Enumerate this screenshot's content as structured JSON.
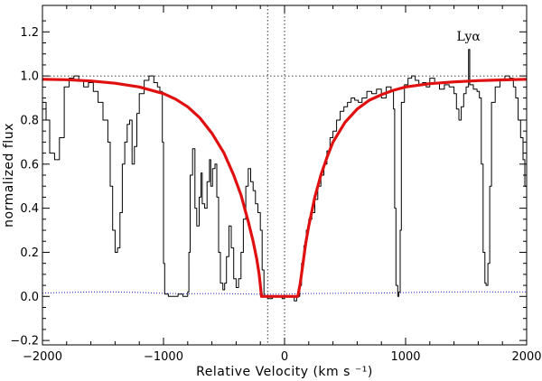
{
  "chart_data": {
    "type": "line",
    "title": "",
    "xlabel": "Relative Velocity (km s ⁻¹)",
    "ylabel": "normalized flux",
    "xlim": [
      -2000,
      2000
    ],
    "ylim": [
      -0.22,
      1.32
    ],
    "grid": false,
    "xticks": [
      -2000,
      -1000,
      0,
      1000,
      2000
    ],
    "xtick_labels": [
      "−2000",
      "−1000",
      "0",
      "1000",
      "2000"
    ],
    "yticks": [
      -0.2,
      0.0,
      0.2,
      0.4,
      0.6,
      0.8,
      1.0,
      1.2
    ],
    "ytick_labels": [
      "−0.2",
      "0.0",
      "0.2",
      "0.4",
      "0.6",
      "0.8",
      "1.0",
      "1.2"
    ],
    "annotations": [
      {
        "text": "Lyα",
        "x": 1520,
        "y": 1.16
      }
    ],
    "reference_lines": {
      "horizontal": [
        1.0
      ],
      "vertical": [
        -140,
        0
      ]
    },
    "series": [
      {
        "color": "#000000",
        "style": "histogram",
        "points": [
          [
            -2000,
            0.88
          ],
          [
            -1970,
            0.8
          ],
          [
            -1940,
            0.65
          ],
          [
            -1900,
            0.62
          ],
          [
            -1860,
            0.72
          ],
          [
            -1820,
            0.95
          ],
          [
            -1780,
            0.99
          ],
          [
            -1740,
            1.0
          ],
          [
            -1700,
            0.98
          ],
          [
            -1660,
            0.95
          ],
          [
            -1620,
            0.97
          ],
          [
            -1580,
            0.93
          ],
          [
            -1540,
            0.88
          ],
          [
            -1500,
            0.8
          ],
          [
            -1460,
            0.7
          ],
          [
            -1440,
            0.5
          ],
          [
            -1420,
            0.3
          ],
          [
            -1400,
            0.2
          ],
          [
            -1380,
            0.22
          ],
          [
            -1360,
            0.38
          ],
          [
            -1340,
            0.6
          ],
          [
            -1320,
            0.7
          ],
          [
            -1300,
            0.78
          ],
          [
            -1280,
            0.8
          ],
          [
            -1260,
            0.6
          ],
          [
            -1240,
            0.68
          ],
          [
            -1220,
            0.83
          ],
          [
            -1200,
            0.92
          ],
          [
            -1160,
            0.98
          ],
          [
            -1120,
            1.0
          ],
          [
            -1080,
            0.97
          ],
          [
            -1050,
            0.95
          ],
          [
            -1030,
            0.93
          ],
          [
            -1010,
            0.7
          ],
          [
            -1000,
            0.15
          ],
          [
            -990,
            0.01
          ],
          [
            -960,
            0.0
          ],
          [
            -920,
            0.0
          ],
          [
            -880,
            0.01
          ],
          [
            -840,
            0.0
          ],
          [
            -800,
            0.02
          ],
          [
            -790,
            0.2
          ],
          [
            -780,
            0.55
          ],
          [
            -760,
            0.67
          ],
          [
            -740,
            0.4
          ],
          [
            -725,
            0.32
          ],
          [
            -705,
            0.45
          ],
          [
            -690,
            0.56
          ],
          [
            -680,
            0.42
          ],
          [
            -660,
            0.4
          ],
          [
            -640,
            0.52
          ],
          [
            -620,
            0.62
          ],
          [
            -610,
            0.5
          ],
          [
            -595,
            0.58
          ],
          [
            -575,
            0.6
          ],
          [
            -560,
            0.45
          ],
          [
            -545,
            0.2
          ],
          [
            -530,
            0.06
          ],
          [
            -510,
            0.03
          ],
          [
            -495,
            0.06
          ],
          [
            -480,
            0.18
          ],
          [
            -460,
            0.32
          ],
          [
            -440,
            0.22
          ],
          [
            -420,
            0.08
          ],
          [
            -400,
            0.04
          ],
          [
            -380,
            0.08
          ],
          [
            -360,
            0.2
          ],
          [
            -340,
            0.35
          ],
          [
            -320,
            0.5
          ],
          [
            -300,
            0.58
          ],
          [
            -280,
            0.52
          ],
          [
            -260,
            0.48
          ],
          [
            -240,
            0.42
          ],
          [
            -220,
            0.38
          ],
          [
            -200,
            0.3
          ],
          [
            -185,
            0.12
          ],
          [
            -170,
            0.0
          ],
          [
            -140,
            -0.01
          ],
          [
            -100,
            0.0
          ],
          [
            -60,
            0.0
          ],
          [
            -20,
            -0.01
          ],
          [
            0,
            0.0
          ],
          [
            40,
            0.0
          ],
          [
            80,
            -0.02
          ],
          [
            100,
            0.0
          ],
          [
            110,
            0.0
          ],
          [
            125,
            0.05
          ],
          [
            140,
            0.15
          ],
          [
            160,
            0.23
          ],
          [
            180,
            0.3
          ],
          [
            200,
            0.35
          ],
          [
            225,
            0.38
          ],
          [
            250,
            0.44
          ],
          [
            275,
            0.5
          ],
          [
            300,
            0.55
          ],
          [
            325,
            0.6
          ],
          [
            350,
            0.66
          ],
          [
            375,
            0.72
          ],
          [
            400,
            0.75
          ],
          [
            430,
            0.8
          ],
          [
            460,
            0.84
          ],
          [
            490,
            0.86
          ],
          [
            520,
            0.88
          ],
          [
            550,
            0.9
          ],
          [
            580,
            0.89
          ],
          [
            610,
            0.88
          ],
          [
            640,
            0.9
          ],
          [
            680,
            0.93
          ],
          [
            720,
            0.92
          ],
          [
            760,
            0.94
          ],
          [
            800,
            0.9
          ],
          [
            840,
            0.95
          ],
          [
            880,
            0.93
          ],
          [
            900,
            0.85
          ],
          [
            910,
            0.4
          ],
          [
            920,
            0.05
          ],
          [
            935,
            0.0
          ],
          [
            945,
            0.02
          ],
          [
            955,
            0.3
          ],
          [
            965,
            0.88
          ],
          [
            990,
            0.96
          ],
          [
            1020,
            0.99
          ],
          [
            1050,
            1.0
          ],
          [
            1080,
            0.98
          ],
          [
            1110,
            0.96
          ],
          [
            1140,
            0.97
          ],
          [
            1170,
            0.95
          ],
          [
            1200,
            0.99
          ],
          [
            1240,
            0.97
          ],
          [
            1280,
            0.94
          ],
          [
            1320,
            0.96
          ],
          [
            1360,
            0.95
          ],
          [
            1400,
            0.92
          ],
          [
            1420,
            0.85
          ],
          [
            1440,
            0.8
          ],
          [
            1460,
            0.86
          ],
          [
            1480,
            0.92
          ],
          [
            1500,
            0.95
          ],
          [
            1520,
            1.12
          ],
          [
            1530,
            0.96
          ],
          [
            1560,
            0.94
          ],
          [
            1590,
            0.93
          ],
          [
            1610,
            0.9
          ],
          [
            1625,
            0.6
          ],
          [
            1640,
            0.2
          ],
          [
            1655,
            0.06
          ],
          [
            1665,
            0.05
          ],
          [
            1680,
            0.15
          ],
          [
            1695,
            0.5
          ],
          [
            1710,
            0.88
          ],
          [
            1740,
            0.95
          ],
          [
            1780,
            0.98
          ],
          [
            1820,
            1.0
          ],
          [
            1860,
            0.99
          ],
          [
            1890,
            0.95
          ],
          [
            1910,
            0.9
          ],
          [
            1930,
            0.8
          ],
          [
            1950,
            0.72
          ],
          [
            1970,
            0.62
          ],
          [
            1985,
            0.5
          ],
          [
            2000,
            0.44
          ]
        ]
      },
      {
        "color": "#e01010",
        "style": "model",
        "points": [
          [
            -2000,
            0.985
          ],
          [
            -1800,
            0.983
          ],
          [
            -1600,
            0.977
          ],
          [
            -1400,
            0.967
          ],
          [
            -1200,
            0.95
          ],
          [
            -1000,
            0.92
          ],
          [
            -900,
            0.895
          ],
          [
            -800,
            0.86
          ],
          [
            -700,
            0.81
          ],
          [
            -600,
            0.74
          ],
          [
            -500,
            0.65
          ],
          [
            -420,
            0.55
          ],
          [
            -360,
            0.46
          ],
          [
            -300,
            0.34
          ],
          [
            -260,
            0.25
          ],
          [
            -230,
            0.17
          ],
          [
            -210,
            0.1
          ],
          [
            -200,
            0.05
          ],
          [
            -190,
            0.0
          ],
          [
            -140,
            0.0
          ],
          [
            -80,
            0.0
          ],
          [
            0,
            0.0
          ],
          [
            80,
            0.0
          ],
          [
            110,
            0.0
          ],
          [
            130,
            0.06
          ],
          [
            150,
            0.14
          ],
          [
            175,
            0.24
          ],
          [
            200,
            0.32
          ],
          [
            250,
            0.45
          ],
          [
            300,
            0.55
          ],
          [
            350,
            0.63
          ],
          [
            400,
            0.7
          ],
          [
            500,
            0.79
          ],
          [
            600,
            0.85
          ],
          [
            700,
            0.89
          ],
          [
            800,
            0.915
          ],
          [
            900,
            0.935
          ],
          [
            1000,
            0.95
          ],
          [
            1200,
            0.965
          ],
          [
            1400,
            0.973
          ],
          [
            1600,
            0.979
          ],
          [
            1800,
            0.982
          ],
          [
            2000,
            0.985
          ]
        ]
      },
      {
        "color": "#1a1acc",
        "style": "error",
        "points": [
          [
            -2000,
            0.015
          ],
          [
            -1800,
            0.018
          ],
          [
            -1600,
            0.02
          ],
          [
            -1400,
            0.02
          ],
          [
            -1200,
            0.018
          ],
          [
            -1000,
            0.014
          ],
          [
            -800,
            0.012
          ],
          [
            -600,
            0.013
          ],
          [
            -400,
            0.012
          ],
          [
            -200,
            0.01
          ],
          [
            0,
            0.01
          ],
          [
            200,
            0.013
          ],
          [
            400,
            0.014
          ],
          [
            600,
            0.015
          ],
          [
            800,
            0.015
          ],
          [
            1000,
            0.017
          ],
          [
            1200,
            0.02
          ],
          [
            1400,
            0.02
          ],
          [
            1600,
            0.021
          ],
          [
            1800,
            0.02
          ],
          [
            2000,
            0.02
          ]
        ]
      }
    ]
  }
}
